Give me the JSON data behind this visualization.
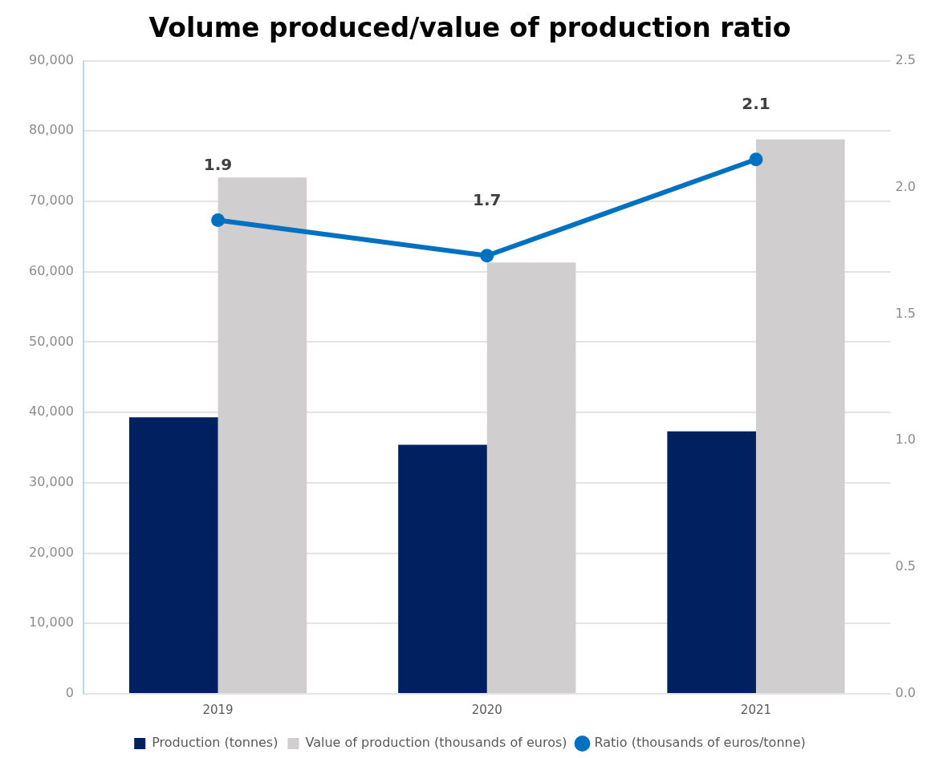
{
  "chart_data": {
    "type": "bar",
    "title": "Volume produced/value of production ratio",
    "categories": [
      "2019",
      "2020",
      "2021"
    ],
    "series": [
      {
        "name": "Production (tonnes)",
        "color": "#002060",
        "values": [
          39300,
          35400,
          37300
        ]
      },
      {
        "name": "Value of production (thousands of euros)",
        "color": "#d0cece",
        "values": [
          73400,
          61300,
          78800
        ]
      },
      {
        "name": "Ratio (thousands of euros/tonne)",
        "type": "line",
        "axis": "y2",
        "color": "#0070c0",
        "values": [
          1.87,
          1.73,
          2.11
        ],
        "value_labels": [
          "1.9",
          "1.7",
          "2.1"
        ]
      }
    ],
    "ylim": [
      0,
      90000
    ],
    "yticks": [
      {
        "value": 0,
        "label": "0"
      },
      {
        "value": 10000,
        "label": "10,000"
      },
      {
        "value": 20000,
        "label": "20,000"
      },
      {
        "value": 30000,
        "label": "30,000"
      },
      {
        "value": 40000,
        "label": "40,000"
      },
      {
        "value": 50000,
        "label": "50,000"
      },
      {
        "value": 60000,
        "label": "60,000"
      },
      {
        "value": 70000,
        "label": "70,000"
      },
      {
        "value": 80000,
        "label": "80,000"
      },
      {
        "value": 90000,
        "label": "90,000"
      }
    ],
    "y2lim": [
      0,
      2.5
    ],
    "y2ticks": [
      {
        "value": 0,
        "label": "0.0"
      },
      0.5,
      {
        "value": 1,
        "label": "1.0"
      },
      1.5,
      {
        "value": 2,
        "label": "2.0"
      },
      2.5
    ],
    "grid": "y",
    "legend": "bottom",
    "marker": "circle"
  }
}
